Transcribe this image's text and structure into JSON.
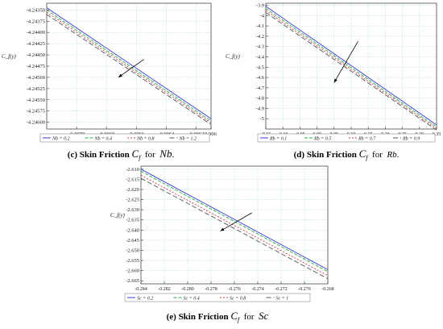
{
  "chart_data": [
    {
      "type": "line",
      "panel": "c",
      "ylabel": "C_f(y)",
      "xlabel": "y",
      "xlim": [
        -0.0072,
        -0.0061
      ],
      "ylim": [
        -4.24615,
        -4.24335
      ],
      "xticks": [
        "-0.0070",
        "-0.0068",
        "-0.0066",
        "-0.0064",
        "-0.0062",
        "-0.0061"
      ],
      "xtick_values": [
        -0.007,
        -0.0068,
        -0.0066,
        -0.0064,
        -0.0062,
        -0.0061
      ],
      "yticks": [
        "-4.24350",
        "-4.24375",
        "-4.24400",
        "-4.24425",
        "-4.24450",
        "-4.24475",
        "-4.24500",
        "-4.24525",
        "-4.24550",
        "-4.24575",
        "-4.24600"
      ],
      "ytick_values": [
        -4.2435,
        -4.24375,
        -4.244,
        -4.24425,
        -4.2445,
        -4.24475,
        -4.245,
        -4.24525,
        -4.2455,
        -4.24575,
        -4.246
      ],
      "grid": true,
      "legend_position": "bottom",
      "arrow": {
        "from": [
          -0.00655,
          -4.2446
        ],
        "to": [
          -0.00672,
          -4.245
        ]
      },
      "series": [
        {
          "name": "Nb = 0.2",
          "color": "#3b3bd6",
          "dash": "solid",
          "x": [
            -0.0072,
            -0.0061
          ],
          "y": [
            -4.24345,
            -4.24592
          ]
        },
        {
          "name": "Nb = 0.4",
          "color": "#2aa845",
          "dash": "4,2",
          "x": [
            -0.0072,
            -0.0061
          ],
          "y": [
            -4.2435,
            -4.24597
          ]
        },
        {
          "name": "Nb = 0.8",
          "color": "#d43b4a",
          "dash": "2,2",
          "x": [
            -0.0072,
            -0.0061
          ],
          "y": [
            -4.24355,
            -4.24601
          ]
        },
        {
          "name": "Nb = 1.2",
          "color": "#555555",
          "dash": "6,3",
          "x": [
            -0.0072,
            -0.0061
          ],
          "y": [
            -4.2436,
            -4.24605
          ]
        }
      ]
    },
    {
      "type": "line",
      "panel": "d",
      "ylabel": "C_f(y)",
      "xlabel": "",
      "xlim": [
        -0.15,
        0.35
      ],
      "ylim": [
        -5.1,
        -3.88
      ],
      "xticks": [
        "-0.15",
        "-0.10",
        "-0.05",
        "0.00",
        "0.05",
        "0.10",
        "0.15",
        "0.20",
        "0.25",
        "0.30",
        "0.35"
      ],
      "xtick_values": [
        -0.15,
        -0.1,
        -0.05,
        0.0,
        0.05,
        0.1,
        0.15,
        0.2,
        0.25,
        0.3,
        0.35
      ],
      "yticks": [
        "-3.9",
        "-4",
        "-4.1",
        "-4.2",
        "-4.3",
        "-4.4",
        "-4.5",
        "-4.6",
        "-4.7",
        "-4.8",
        "-4.9",
        "-5"
      ],
      "ytick_values": [
        -3.9,
        -4.0,
        -4.1,
        -4.2,
        -4.3,
        -4.4,
        -4.5,
        -4.6,
        -4.7,
        -4.8,
        -4.9,
        -5.0
      ],
      "grid": true,
      "legend_position": "bottom",
      "arrow": {
        "from": [
          0.12,
          -4.25
        ],
        "to": [
          0.05,
          -4.65
        ]
      },
      "series": [
        {
          "name": "Rb = 0.1",
          "color": "#3b3bd6",
          "dash": "solid",
          "x": [
            -0.15,
            0.35
          ],
          "y": [
            -3.91,
            -5.06
          ]
        },
        {
          "name": "Rb = 0.5",
          "color": "#2aa845",
          "dash": "4,2",
          "x": [
            -0.15,
            0.35
          ],
          "y": [
            -3.93,
            -5.08
          ]
        },
        {
          "name": "Rb = 0.7",
          "color": "#d43b4a",
          "dash": "2,2",
          "x": [
            -0.15,
            0.35
          ],
          "y": [
            -3.95,
            -5.095
          ]
        },
        {
          "name": "Rb = 0.9",
          "color": "#555555",
          "dash": "6,3",
          "x": [
            -0.15,
            0.35
          ],
          "y": [
            -3.97,
            -5.11
          ]
        }
      ]
    },
    {
      "type": "line",
      "panel": "e",
      "ylabel": "C_f(y)",
      "xlabel": "y",
      "xlim": [
        -0.284,
        -0.268
      ],
      "ylim": [
        -2.6665,
        -2.6085
      ],
      "xticks": [
        "-0.284",
        "-0.282",
        "-0.280",
        "-0.278",
        "-0.276",
        "-0.274",
        "-0.272",
        "-0.270",
        "-0.268"
      ],
      "xtick_values": [
        -0.284,
        -0.282,
        -0.28,
        -0.278,
        -0.276,
        -0.274,
        -0.272,
        -0.27,
        -0.268
      ],
      "yticks": [
        "-2.610",
        "-2.615",
        "-2.620",
        "-2.625",
        "-2.630",
        "-2.635",
        "-2.640",
        "-2.645",
        "-2.650",
        "-2.655",
        "-2.660",
        "-2.665"
      ],
      "ytick_values": [
        -2.61,
        -2.615,
        -2.62,
        -2.625,
        -2.63,
        -2.635,
        -2.64,
        -2.645,
        -2.65,
        -2.655,
        -2.66,
        -2.665
      ],
      "grid": true,
      "legend_position": "bottom",
      "arrow": {
        "from": [
          -0.2745,
          -2.6315
        ],
        "to": [
          -0.2772,
          -2.6405
        ]
      },
      "series": [
        {
          "name": "Sc = 0.2",
          "color": "#3b3bd6",
          "dash": "solid",
          "x": [
            -0.284,
            -0.268
          ],
          "y": [
            -2.61,
            -2.6595
          ]
        },
        {
          "name": "Sc = 0.4",
          "color": "#2aa845",
          "dash": "4,2",
          "x": [
            -0.284,
            -0.268
          ],
          "y": [
            -2.611,
            -2.6605
          ]
        },
        {
          "name": "Sc = 0.8",
          "color": "#d43b4a",
          "dash": "2,2",
          "x": [
            -0.284,
            -0.268
          ],
          "y": [
            -2.613,
            -2.6625
          ]
        },
        {
          "name": "Sc = 1",
          "color": "#555555",
          "dash": "6,3",
          "x": [
            -0.284,
            -0.268
          ],
          "y": [
            -2.6145,
            -2.664
          ]
        }
      ]
    }
  ],
  "captions": {
    "c": {
      "label": "(c) Skin Friction",
      "sym": "C",
      "sub": "f",
      "for": "for",
      "param": "Nb",
      "end": "."
    },
    "d": {
      "label": "(d) Skin Friction",
      "sym": "C",
      "sub": "f",
      "for": "for",
      "param": "Rb",
      "end": "."
    },
    "e": {
      "label": "(e) Skin Friction",
      "sym": "C",
      "sub": "f",
      "for": "for",
      "param": "Sc",
      "end": ""
    }
  }
}
